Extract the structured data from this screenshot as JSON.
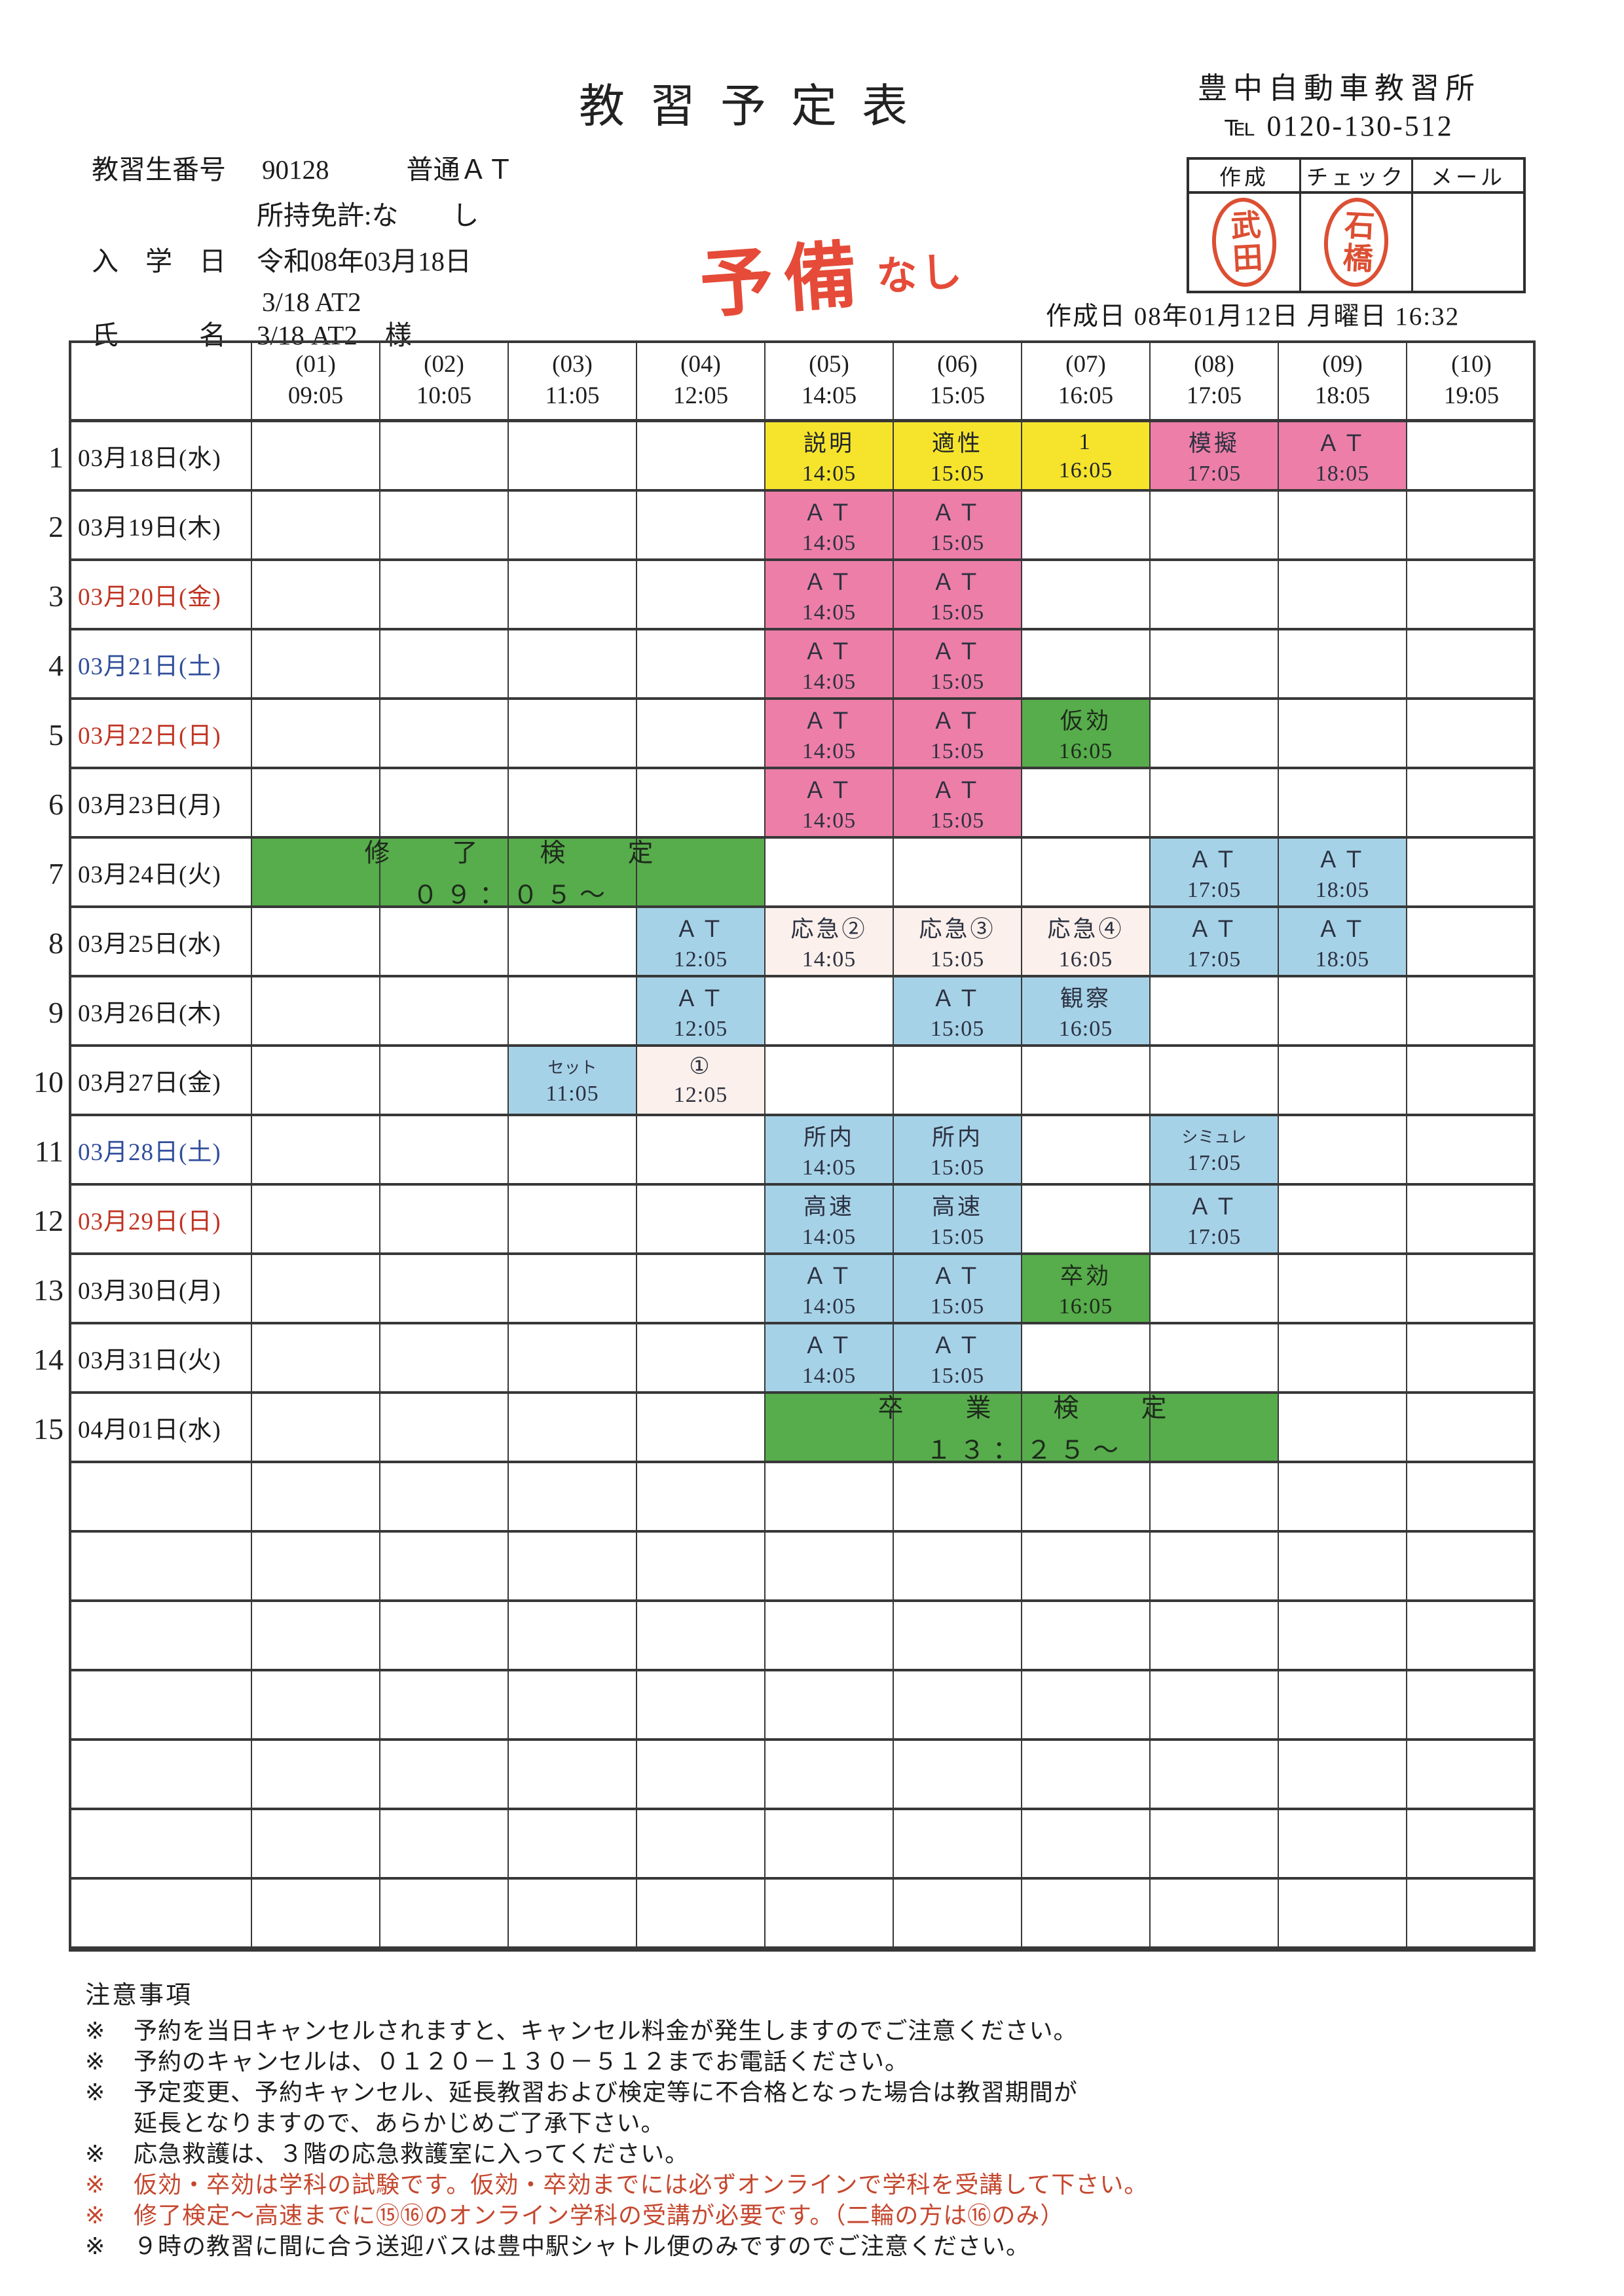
{
  "page": {
    "title": "教習予定表"
  },
  "school": {
    "name": "豊中自動車教習所",
    "tel": "℡ 0120-130-512"
  },
  "student": {
    "id_label": "教習生番号",
    "id_value": "90128",
    "course": "普通ＡＴ",
    "license": "所持免許:な　　し",
    "enroll_label": "入　学　日",
    "enroll_value": "令和08年03月18日",
    "class_code": "3/18 AT2",
    "name_label": "氏　　　名",
    "name_value": "3/18 AT2",
    "honorific": "様"
  },
  "annotation": {
    "main": "予備",
    "sub": "なし"
  },
  "stamp_box": {
    "headers": [
      "作成",
      "チェック",
      "メール"
    ],
    "stamps": [
      "武田",
      "石橋"
    ]
  },
  "made": {
    "line": "作成日 08年01月12日 月曜日  16:32"
  },
  "colors": {
    "yellow": "#F6E42C",
    "pink": "#ED7EA8",
    "blue": "#A6D2E8",
    "green": "#57AC4B",
    "pale_pink": "#FBF0EB",
    "line": "#383838",
    "date_red": "#C03322",
    "sat_blue": "#2F4D9B",
    "note_red": "#C5472E",
    "hand_red": "#E54B38",
    "stamp_red": "#DC4F33"
  },
  "table": {
    "slots": [
      {
        "no": "(01)",
        "time": "09:05"
      },
      {
        "no": "(02)",
        "time": "10:05"
      },
      {
        "no": "(03)",
        "time": "11:05"
      },
      {
        "no": "(04)",
        "time": "12:05"
      },
      {
        "no": "(05)",
        "time": "14:05"
      },
      {
        "no": "(06)",
        "time": "15:05"
      },
      {
        "no": "(07)",
        "time": "16:05"
      },
      {
        "no": "(08)",
        "time": "17:05"
      },
      {
        "no": "(09)",
        "time": "18:05"
      },
      {
        "no": "(10)",
        "time": "19:05"
      }
    ],
    "rows": [
      {
        "num": "1",
        "date": "03月18日(水)",
        "dc": "k",
        "cells": [
          {
            "c": 5,
            "l": "説明",
            "t": "14:05",
            "bg": "y"
          },
          {
            "c": 6,
            "l": "適性",
            "t": "15:05",
            "bg": "y"
          },
          {
            "c": 7,
            "l": "1",
            "t": "16:05",
            "bg": "y"
          },
          {
            "c": 8,
            "l": "模擬",
            "t": "17:05",
            "bg": "p"
          },
          {
            "c": 9,
            "l": "ＡＴ",
            "t": "18:05",
            "bg": "p"
          }
        ]
      },
      {
        "num": "2",
        "date": "03月19日(木)",
        "dc": "k",
        "cells": [
          {
            "c": 5,
            "l": "ＡＴ",
            "t": "14:05",
            "bg": "p"
          },
          {
            "c": 6,
            "l": "ＡＴ",
            "t": "15:05",
            "bg": "p"
          }
        ]
      },
      {
        "num": "3",
        "date": "03月20日(金)",
        "dc": "r",
        "cells": [
          {
            "c": 5,
            "l": "ＡＴ",
            "t": "14:05",
            "bg": "p"
          },
          {
            "c": 6,
            "l": "ＡＴ",
            "t": "15:05",
            "bg": "p"
          }
        ]
      },
      {
        "num": "4",
        "date": "03月21日(土)",
        "dc": "b",
        "cells": [
          {
            "c": 5,
            "l": "ＡＴ",
            "t": "14:05",
            "bg": "p"
          },
          {
            "c": 6,
            "l": "ＡＴ",
            "t": "15:05",
            "bg": "p"
          }
        ]
      },
      {
        "num": "5",
        "date": "03月22日(日)",
        "dc": "r",
        "cells": [
          {
            "c": 5,
            "l": "ＡＴ",
            "t": "14:05",
            "bg": "p"
          },
          {
            "c": 6,
            "l": "ＡＴ",
            "t": "15:05",
            "bg": "p"
          },
          {
            "c": 7,
            "l": "仮効",
            "t": "16:05",
            "bg": "g"
          }
        ]
      },
      {
        "num": "6",
        "date": "03月23日(月)",
        "dc": "k",
        "cells": [
          {
            "c": 5,
            "l": "ＡＴ",
            "t": "14:05",
            "bg": "p"
          },
          {
            "c": 6,
            "l": "ＡＴ",
            "t": "15:05",
            "bg": "p"
          }
        ]
      },
      {
        "num": "7",
        "date": "03月24日(火)",
        "dc": "k",
        "merge": {
          "from": 1,
          "to": 4,
          "line1": "修　了　検　定",
          "line2": "０９：０５～"
        },
        "cells": [
          {
            "c": 8,
            "l": "ＡＴ",
            "t": "17:05",
            "bg": "bl"
          },
          {
            "c": 9,
            "l": "ＡＴ",
            "t": "18:05",
            "bg": "bl"
          }
        ]
      },
      {
        "num": "8",
        "date": "03月25日(水)",
        "dc": "k",
        "cells": [
          {
            "c": 4,
            "l": "ＡＴ",
            "t": "12:05",
            "bg": "bl"
          },
          {
            "c": 5,
            "l": "応急②",
            "t": "14:05",
            "bg": "pp"
          },
          {
            "c": 6,
            "l": "応急③",
            "t": "15:05",
            "bg": "pp"
          },
          {
            "c": 7,
            "l": "応急④",
            "t": "16:05",
            "bg": "pp"
          },
          {
            "c": 8,
            "l": "ＡＴ",
            "t": "17:05",
            "bg": "bl"
          },
          {
            "c": 9,
            "l": "ＡＴ",
            "t": "18:05",
            "bg": "bl"
          }
        ]
      },
      {
        "num": "9",
        "date": "03月26日(木)",
        "dc": "k",
        "cells": [
          {
            "c": 4,
            "l": "ＡＴ",
            "t": "12:05",
            "bg": "bl"
          },
          {
            "c": 6,
            "l": "ＡＴ",
            "t": "15:05",
            "bg": "bl"
          },
          {
            "c": 7,
            "l": "観察",
            "t": "16:05",
            "bg": "bl"
          }
        ]
      },
      {
        "num": "10",
        "date": "03月27日(金)",
        "dc": "k",
        "cells": [
          {
            "c": 3,
            "l": "セット",
            "t": "11:05",
            "bg": "bl",
            "sm": true
          },
          {
            "c": 4,
            "l": "①",
            "t": "12:05",
            "bg": "pp"
          }
        ]
      },
      {
        "num": "11",
        "date": "03月28日(土)",
        "dc": "b",
        "cells": [
          {
            "c": 5,
            "l": "所内",
            "t": "14:05",
            "bg": "bl"
          },
          {
            "c": 6,
            "l": "所内",
            "t": "15:05",
            "bg": "bl"
          },
          {
            "c": 8,
            "l": "シミュレ",
            "t": "17:05",
            "bg": "bl",
            "sm": true
          }
        ]
      },
      {
        "num": "12",
        "date": "03月29日(日)",
        "dc": "r",
        "cells": [
          {
            "c": 5,
            "l": "高速",
            "t": "14:05",
            "bg": "bl"
          },
          {
            "c": 6,
            "l": "高速",
            "t": "15:05",
            "bg": "bl"
          },
          {
            "c": 8,
            "l": "ＡＴ",
            "t": "17:05",
            "bg": "bl"
          }
        ]
      },
      {
        "num": "13",
        "date": "03月30日(月)",
        "dc": "k",
        "cells": [
          {
            "c": 5,
            "l": "ＡＴ",
            "t": "14:05",
            "bg": "bl"
          },
          {
            "c": 6,
            "l": "ＡＴ",
            "t": "15:05",
            "bg": "bl"
          },
          {
            "c": 7,
            "l": "卒効",
            "t": "16:05",
            "bg": "g"
          }
        ]
      },
      {
        "num": "14",
        "date": "03月31日(火)",
        "dc": "k",
        "cells": [
          {
            "c": 5,
            "l": "ＡＴ",
            "t": "14:05",
            "bg": "bl"
          },
          {
            "c": 6,
            "l": "ＡＴ",
            "t": "15:05",
            "bg": "bl"
          }
        ]
      },
      {
        "num": "15",
        "date": "04月01日(水)",
        "dc": "k",
        "merge": {
          "from": 5,
          "to": 8,
          "line1": "卒　業　検　定",
          "line2": "１３：２５～"
        },
        "cells": []
      }
    ],
    "empty_rows": 7
  },
  "notes": {
    "heading": "注意事項",
    "marker": "※",
    "items": [
      {
        "text": "予約を当日キャンセルされますと、キャンセル料金が発生しますのでご注意ください。",
        "red": false
      },
      {
        "text": "予約のキャンセルは、０１２０－１３０－５１２までお電話ください。",
        "red": false
      },
      {
        "text": "予定変更、予約キャンセル、延長教習および検定等に不合格となった場合は教習期間が",
        "cont": "延長となりますので、あらかじめご了承下さい。",
        "red": false
      },
      {
        "text": "応急救護は、３階の応急救護室に入ってください。",
        "red": false
      },
      {
        "text": "仮効・卒効は学科の試験です。仮効・卒効までには必ずオンラインで学科を受講して下さい。",
        "red": true
      },
      {
        "text": "修了検定～高速までに⑮⑯のオンライン学科の受講が必要です。（二輪の方は⑯のみ）",
        "red": true
      },
      {
        "text": "９時の教習に間に合う送迎バスは豊中駅シャトル便のみですのでご注意ください。",
        "red": false
      }
    ]
  }
}
